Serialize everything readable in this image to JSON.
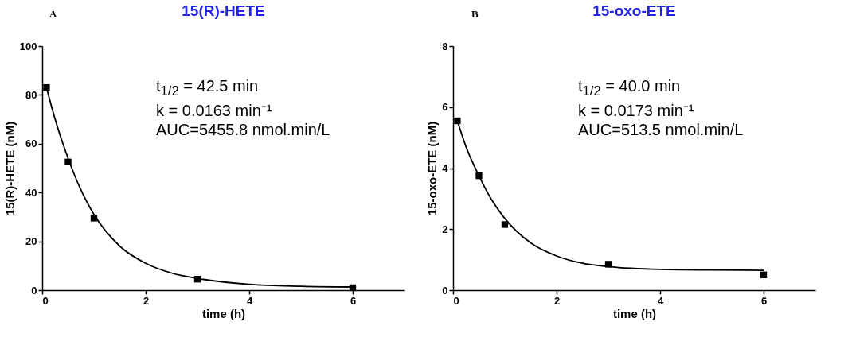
{
  "chart_data": [
    {
      "type": "scatter",
      "title": "15(R)-HETE",
      "xlabel": "time (h)",
      "ylabel": "15(R)-HETE (nM)",
      "annotations": [
        "A",
        "t$_{1/2}$ = 42.5 min",
        "k = 0.0163 min⁻¹",
        "AUC=5455.8 nmol.min/L"
      ],
      "marker": "square",
      "xlim": [
        0,
        7
      ],
      "xticks": [
        0,
        2,
        4,
        6
      ],
      "ylim": [
        0,
        100
      ],
      "yticks": [
        0,
        20,
        40,
        60,
        80,
        100
      ],
      "series": [
        {
          "color": "#000000",
          "x": [
            0.083,
            0.5,
            1,
            3,
            6
          ],
          "values": [
            83,
            52.5,
            29.5,
            4.5,
            1
          ]
        },
        {
          "type": "line",
          "marker": "none",
          "color": "#000000",
          "x": [
            0.083,
            0.25,
            0.5,
            0.75,
            1,
            1.5,
            2,
            2.5,
            3,
            4,
            5,
            6
          ],
          "values": [
            83,
            70,
            54,
            41,
            31,
            18,
            11,
            7,
            4.8,
            2.4,
            1.6,
            1.3
          ]
        }
      ]
    },
    {
      "type": "scatter",
      "title": "15-oxo-ETE",
      "xlabel": "time (h)",
      "ylabel": "15-oxo-ETE (nM)",
      "annotations": [
        "B",
        "t$_{1/2}$ = 40.0 min",
        "k = 0.0173 min⁻¹",
        "AUC=513.5 nmol.min/L"
      ],
      "marker": "square",
      "xlim": [
        0,
        7
      ],
      "xticks": [
        0,
        2,
        4,
        6
      ],
      "ylim": [
        0,
        8
      ],
      "yticks": [
        0,
        2,
        4,
        6,
        8
      ],
      "series": [
        {
          "color": "#000000",
          "x": [
            0.083,
            0.5,
            1,
            3,
            6
          ],
          "values": [
            5.55,
            3.75,
            2.15,
            0.85,
            0.5
          ]
        },
        {
          "type": "line",
          "marker": "none",
          "color": "#000000",
          "x": [
            0.083,
            0.25,
            0.5,
            0.75,
            1,
            1.5,
            2,
            2.5,
            3,
            4,
            5,
            6
          ],
          "values": [
            5.55,
            4.7,
            3.75,
            2.95,
            2.35,
            1.55,
            1.12,
            0.88,
            0.77,
            0.68,
            0.66,
            0.65
          ]
        }
      ]
    }
  ]
}
